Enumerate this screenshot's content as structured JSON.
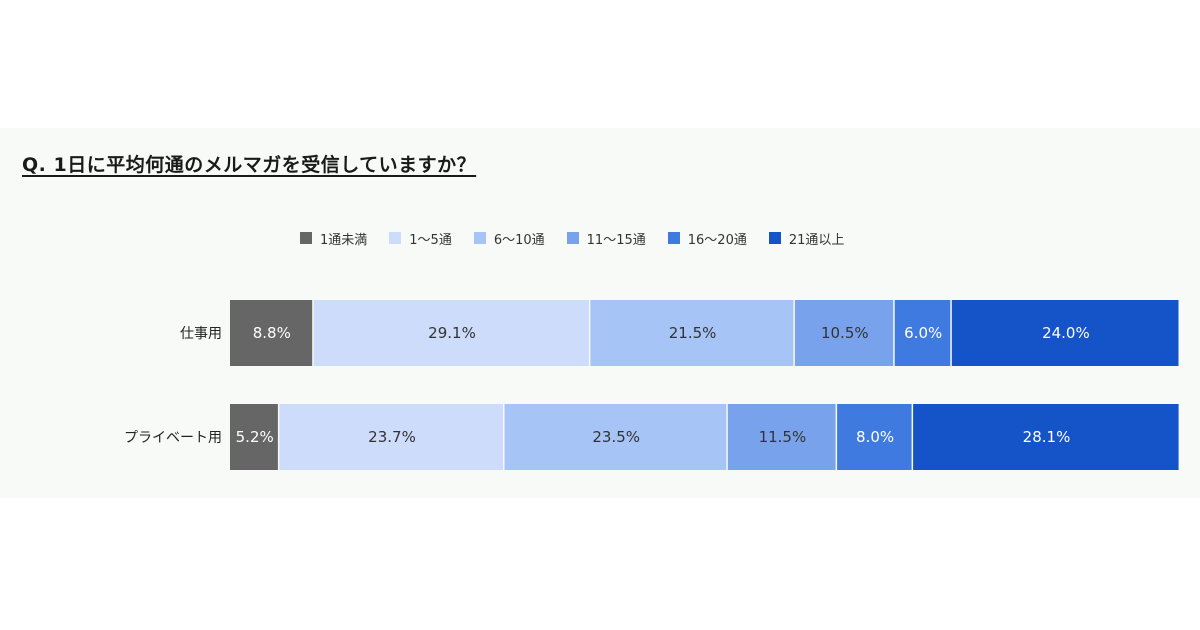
{
  "chart_data": {
    "type": "bar",
    "orientation": "horizontal",
    "stacked": true,
    "normalized": true,
    "title": "Q. 1日に平均何通のメルマガを受信していますか？",
    "categories": [
      "仕事用",
      "プライベート用"
    ],
    "series": [
      {
        "name": "1通未満",
        "color": "#666666",
        "label_color": "#ffffff",
        "values": [
          8.8,
          5.2
        ],
        "labels": [
          "8.8%",
          "5.2%"
        ]
      },
      {
        "name": "1～5通",
        "color": "#cddcfb",
        "label_color": "#333333",
        "values": [
          29.1,
          23.7
        ],
        "labels": [
          "29.1%",
          "23.7%"
        ]
      },
      {
        "name": "6～10通",
        "color": "#a6c4f5",
        "label_color": "#333333",
        "values": [
          21.5,
          23.5
        ],
        "labels": [
          "21.5%",
          "23.5%"
        ]
      },
      {
        "name": "11～15通",
        "color": "#78a3ec",
        "label_color": "#333333",
        "values": [
          10.5,
          11.5
        ],
        "labels": [
          "10.5%",
          "11.5%"
        ]
      },
      {
        "name": "16～20通",
        "color": "#3f7ae0",
        "label_color": "#ffffff",
        "values": [
          6.0,
          8.0
        ],
        "labels": [
          "6.0%",
          "8.0%"
        ]
      },
      {
        "name": "21通以上",
        "color": "#1553c9",
        "label_color": "#ffffff",
        "values": [
          24.0,
          28.1
        ],
        "labels": [
          "24.0%",
          "28.1%"
        ]
      }
    ],
    "xlim": [
      0,
      100
    ],
    "legend_position": "top",
    "grid": false
  }
}
